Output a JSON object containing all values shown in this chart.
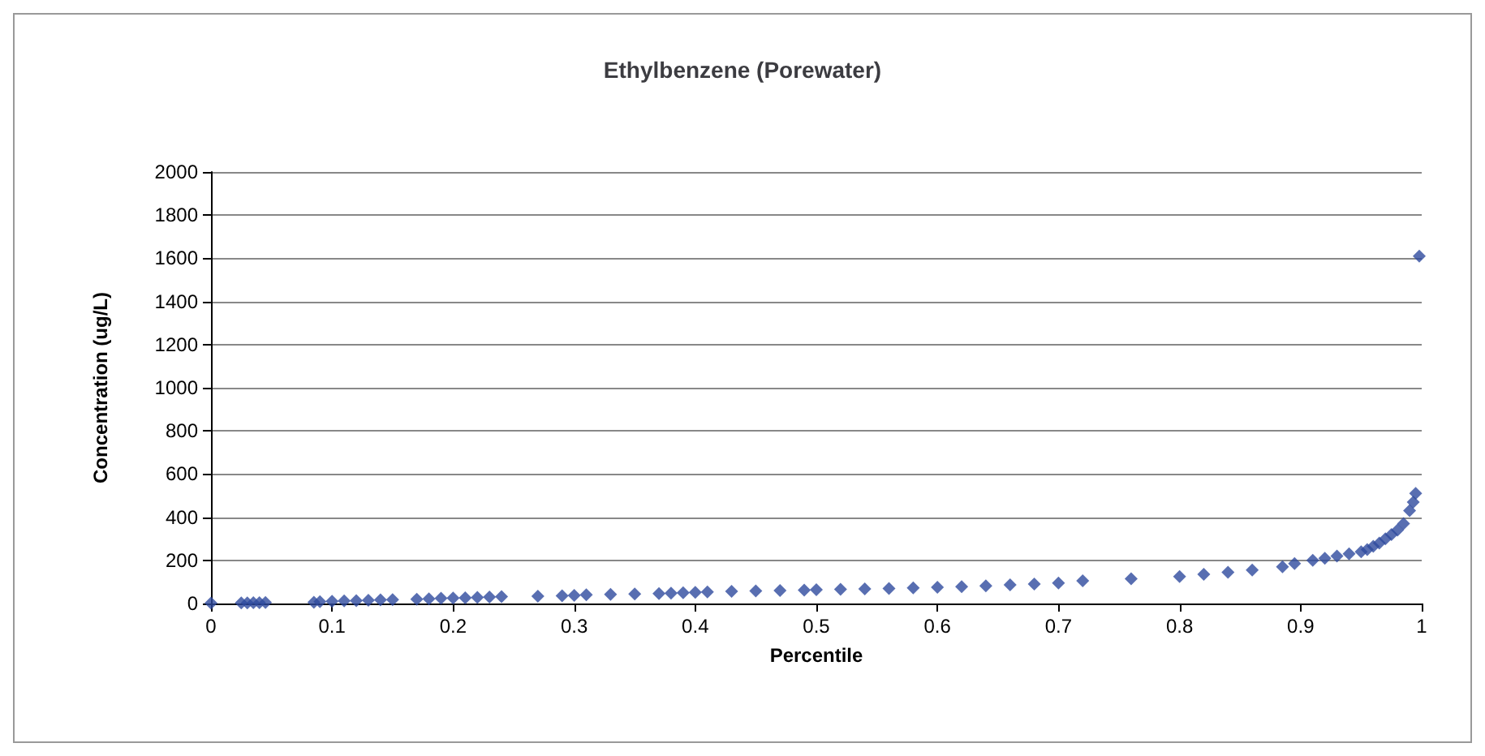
{
  "chart_data": {
    "type": "scatter",
    "title": "Ethylbenzene (Porewater)",
    "xlabel": "Percentile",
    "ylabel": "Concentration (ug/L)",
    "xlim": [
      0,
      1
    ],
    "xticks": [
      0,
      0.1,
      0.2,
      0.3,
      0.4,
      0.5,
      0.6,
      0.7,
      0.8,
      0.9,
      1
    ],
    "ylim": [
      0,
      2000
    ],
    "yticks": [
      0,
      200,
      400,
      600,
      800,
      1000,
      1200,
      1400,
      1600,
      1800,
      2000
    ],
    "grid": "y",
    "marker": "diamond",
    "series": [
      {
        "color": "#2e4a9e",
        "x": [
          0,
          0.025,
          0.03,
          0.035,
          0.04,
          0.045,
          0.085,
          0.09,
          0.1,
          0.11,
          0.12,
          0.13,
          0.14,
          0.15,
          0.17,
          0.18,
          0.19,
          0.2,
          0.21,
          0.22,
          0.23,
          0.24,
          0.27,
          0.29,
          0.3,
          0.31,
          0.33,
          0.35,
          0.37,
          0.38,
          0.39,
          0.4,
          0.41,
          0.43,
          0.45,
          0.47,
          0.49,
          0.5,
          0.52,
          0.54,
          0.56,
          0.58,
          0.6,
          0.62,
          0.64,
          0.66,
          0.68,
          0.7,
          0.72,
          0.76,
          0.8,
          0.82,
          0.84,
          0.86,
          0.885,
          0.895,
          0.91,
          0.92,
          0.93,
          0.94,
          0.95,
          0.955,
          0.96,
          0.965,
          0.97,
          0.975,
          0.98,
          0.985,
          0.99,
          0.993,
          0.995,
          0.998
        ],
        "values": [
          2,
          3,
          3,
          4,
          4,
          5,
          6,
          8,
          10,
          12,
          13,
          15,
          17,
          18,
          20,
          22,
          24,
          25,
          26,
          28,
          30,
          32,
          34,
          36,
          38,
          40,
          42,
          44,
          46,
          48,
          50,
          52,
          54,
          56,
          58,
          60,
          62,
          64,
          66,
          68,
          70,
          72,
          75,
          78,
          82,
          86,
          90,
          95,
          105,
          115,
          125,
          135,
          145,
          155,
          170,
          185,
          200,
          210,
          220,
          230,
          240,
          250,
          265,
          280,
          300,
          320,
          340,
          370,
          430,
          470,
          510,
          1610
        ]
      }
    ]
  }
}
